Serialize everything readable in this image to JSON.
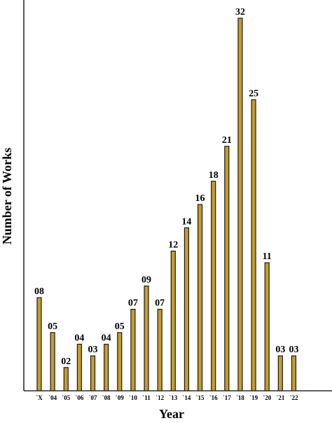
{
  "chart_data": {
    "type": "bar",
    "categories": [
      "`X",
      "`04",
      "`05",
      "`06",
      "`07",
      "`08",
      "`09",
      "`10",
      "`11",
      "`12",
      "`13",
      "`14",
      "`15",
      "`16",
      "`17",
      "`18",
      "`19",
      "`20",
      "`21",
      "`22"
    ],
    "values": [
      8,
      5,
      2,
      4,
      3,
      4,
      5,
      7,
      9,
      7,
      12,
      14,
      16,
      18,
      21,
      32,
      25,
      11,
      3,
      3
    ],
    "value_labels": [
      "08",
      "05",
      "02",
      "04",
      "03",
      "04",
      "05",
      "07",
      "09",
      "07",
      "12",
      "14",
      "16",
      "18",
      "21",
      "32",
      "25",
      "11",
      "03",
      "03"
    ],
    "title": "",
    "xlabel": "Year",
    "ylabel": "Number of Works",
    "ylim": [
      0,
      32
    ],
    "grid": false,
    "bar_color": "#C69C2E",
    "bar_edge_color": "#1a1a1a"
  }
}
